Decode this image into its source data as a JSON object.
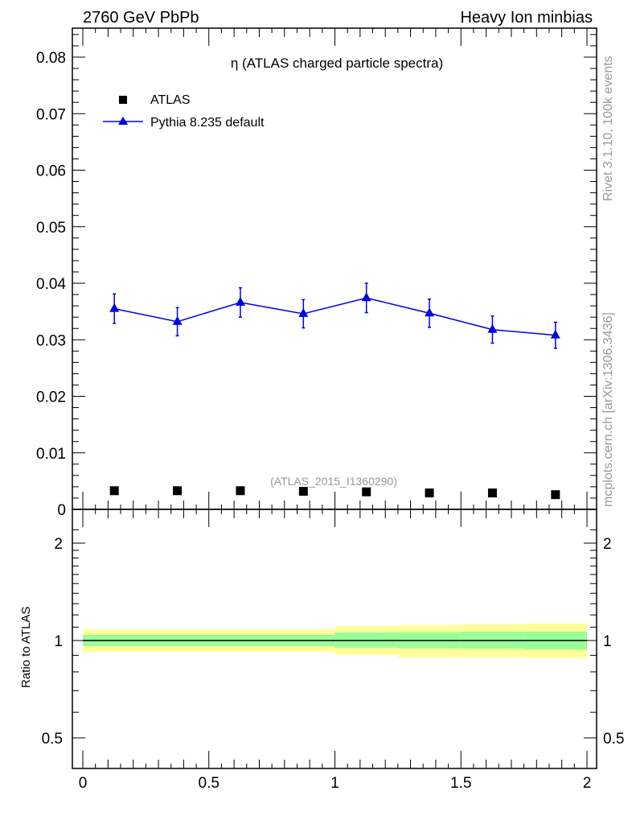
{
  "header": {
    "left": "2760 GeV PbPb",
    "right": "Heavy Ion minbias"
  },
  "side_labels": {
    "rivet": "Rivet 3.1.10,  100k events",
    "mcplots": "mcplots.cern.ch [arXiv:1306.3436]"
  },
  "colors": {
    "mc": "#0000e6",
    "data": "#000000",
    "band_outer": "#ffff99",
    "band_inner": "#99ff99"
  },
  "chart_data": [
    {
      "type": "scatter",
      "title": "η (ATLAS charged particle spectra)",
      "analysis_tag": "(ATLAS_2015_I1360290)",
      "xlim": [
        -0.04,
        2.04
      ],
      "ylim": [
        0,
        0.085
      ],
      "yticks": [
        "0",
        "0.01",
        "0.02",
        "0.03",
        "0.04",
        "0.05",
        "0.06",
        "0.07",
        "0.08"
      ],
      "legend": {
        "placement": "top-left",
        "entries": [
          "ATLAS",
          "Pythia 8.235 default"
        ]
      },
      "series": [
        {
          "name": "ATLAS",
          "marker": "square",
          "x": [
            0.125,
            0.375,
            0.625,
            0.875,
            1.125,
            1.375,
            1.625,
            1.875
          ],
          "y": [
            0.0033,
            0.0033,
            0.0033,
            0.0032,
            0.0031,
            0.0029,
            0.0029,
            0.0026
          ]
        },
        {
          "name": "Pythia 8.235 default",
          "marker": "triangle",
          "x": [
            0.125,
            0.375,
            0.625,
            0.875,
            1.125,
            1.375,
            1.625,
            1.875
          ],
          "y": [
            0.0355,
            0.0332,
            0.0366,
            0.0346,
            0.0374,
            0.0347,
            0.0318,
            0.0308
          ],
          "yerr": [
            0.0026,
            0.0025,
            0.0026,
            0.0025,
            0.0026,
            0.0025,
            0.0024,
            0.0023
          ]
        }
      ]
    },
    {
      "type": "area",
      "ylabel": "Ratio to ATLAS",
      "yscale": "log",
      "ylim": [
        0.4,
        2.4
      ],
      "yticks": [
        "0.5",
        "1",
        "2"
      ],
      "xticks": [
        "0",
        "0.5",
        "1",
        "1.5",
        "2"
      ],
      "bins": [
        [
          0,
          1
        ],
        [
          1,
          1.25
        ],
        [
          1.25,
          1.5
        ],
        [
          1.5,
          1.75
        ],
        [
          1.75,
          2
        ]
      ],
      "outer_band": {
        "lo": [
          0.924,
          0.902,
          0.887,
          0.887,
          0.883
        ],
        "hi": [
          1.083,
          1.109,
          1.115,
          1.123,
          1.128
        ]
      },
      "inner_band": {
        "lo": [
          0.961,
          0.951,
          0.946,
          0.943,
          0.937
        ],
        "hi": [
          1.041,
          1.059,
          1.061,
          1.065,
          1.065
        ]
      }
    }
  ]
}
